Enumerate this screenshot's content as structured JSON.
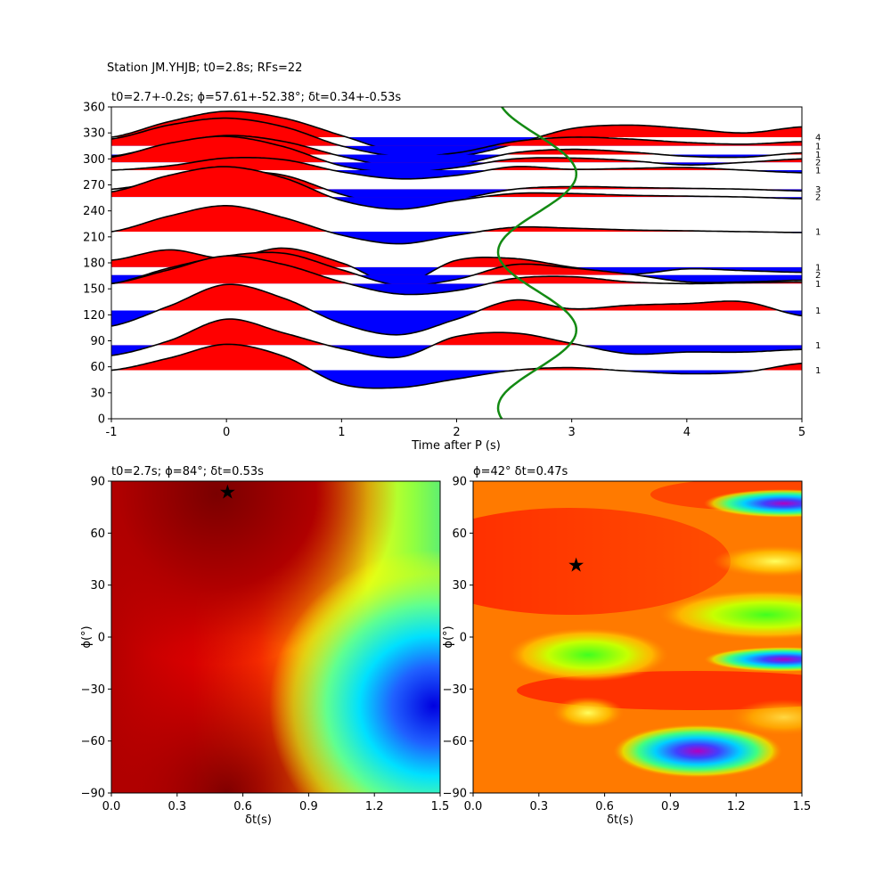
{
  "figure_title": "Station JM.YHJB; t0=2.8s; RFs=22",
  "colors": {
    "positive": "#ff0000",
    "negative": "#0000ff",
    "sine": "#138a13",
    "trace": "#000000"
  },
  "chart_data": [
    {
      "name": "receiver-function-traces",
      "type": "line",
      "title": "t0=2.7+-0.2s; ϕ=57.61+-52.38°; δt=0.34+-0.53s",
      "xlabel": "Time after P (s)",
      "ylabel": "",
      "xlim": [
        -1,
        5
      ],
      "ylim": [
        0,
        360
      ],
      "xticks": [
        -1,
        0,
        1,
        2,
        3,
        4,
        5
      ],
      "yticks": [
        0,
        30,
        60,
        90,
        120,
        150,
        180,
        210,
        240,
        270,
        300,
        330,
        360
      ],
      "time": [
        -1.0,
        -0.5,
        0.0,
        0.5,
        1.0,
        1.5,
        2.0,
        2.5,
        3.0,
        3.5,
        4.0,
        4.5,
        5.0
      ],
      "traces": [
        {
          "baseaz": 325,
          "count": "4",
          "values": [
            0,
            18,
            30,
            22,
            2,
            -18,
            -22,
            -8,
            10,
            14,
            10,
            5,
            12
          ]
        },
        {
          "baseaz": 315,
          "count": "1",
          "values": [
            8,
            24,
            32,
            22,
            0,
            -12,
            -8,
            5,
            10,
            8,
            4,
            2,
            5
          ]
        },
        {
          "baseaz": 305,
          "count": "1",
          "values": [
            -2,
            12,
            22,
            15,
            -2,
            -15,
            -12,
            2,
            6,
            3,
            -2,
            -3,
            2
          ]
        },
        {
          "baseaz": 296,
          "count": "2",
          "values": [
            6,
            22,
            30,
            18,
            -4,
            -12,
            -6,
            4,
            5,
            2,
            -3,
            0,
            4
          ]
        },
        {
          "baseaz": 287,
          "count": "1",
          "values": [
            0,
            5,
            14,
            12,
            -2,
            -10,
            -6,
            4,
            1,
            2,
            3,
            0,
            -3
          ]
        },
        {
          "baseaz": 265,
          "count": "3",
          "values": [
            0,
            10,
            20,
            16,
            -6,
            -20,
            -12,
            0,
            3,
            2,
            1,
            0,
            -2
          ]
        },
        {
          "baseaz": 256,
          "count": "2",
          "values": [
            6,
            25,
            35,
            22,
            -4,
            -14,
            -4,
            4,
            4,
            2,
            1,
            0,
            -2
          ]
        },
        {
          "baseaz": 216,
          "count": "1",
          "values": [
            0,
            18,
            30,
            16,
            -4,
            -14,
            -4,
            5,
            4,
            2,
            1,
            0,
            -1
          ]
        },
        {
          "baseaz": 175,
          "count": "1",
          "values": [
            8,
            20,
            10,
            22,
            5,
            -20,
            8,
            10,
            0,
            -8,
            -2,
            -4,
            -6
          ]
        },
        {
          "baseaz": 166,
          "count": "2",
          "values": [
            -10,
            8,
            22,
            25,
            6,
            -12,
            -5,
            12,
            8,
            1,
            -8,
            -8,
            -6
          ]
        },
        {
          "baseaz": 156,
          "count": "1",
          "values": [
            0,
            16,
            32,
            22,
            2,
            -12,
            -8,
            6,
            8,
            2,
            0,
            1,
            2
          ]
        },
        {
          "baseaz": 125,
          "count": "1",
          "values": [
            -18,
            5,
            30,
            14,
            -15,
            -28,
            -10,
            12,
            2,
            6,
            8,
            10,
            -6
          ]
        },
        {
          "baseaz": 85,
          "count": "1",
          "values": [
            -12,
            5,
            30,
            14,
            -4,
            -14,
            10,
            14,
            2,
            -10,
            -8,
            -8,
            -5
          ]
        },
        {
          "baseaz": 56,
          "count": "1",
          "values": [
            0,
            14,
            30,
            16,
            -16,
            -20,
            -10,
            0,
            3,
            -1,
            -4,
            -2,
            8
          ]
        }
      ],
      "sine_curve": {
        "center_time": 2.7,
        "amplitude": 0.34,
        "phase_deg": 57.61
      }
    },
    {
      "name": "grid-search-1",
      "type": "heatmap",
      "title": "t0=2.7s; ϕ=84°; δt=0.53s",
      "xlabel": "δt(s)",
      "ylabel": "ϕ(°)",
      "xlim": [
        0,
        1.5
      ],
      "ylim": [
        -90,
        90
      ],
      "xticks": [
        0.0,
        0.3,
        0.6,
        0.9,
        1.2,
        1.5
      ],
      "yticks": [
        -90,
        -60,
        -30,
        0,
        30,
        60,
        90
      ],
      "best": {
        "dt": 0.53,
        "phi": 84
      }
    },
    {
      "name": "grid-search-2",
      "type": "heatmap",
      "title": "ϕ=42° δt=0.47s",
      "xlabel": "δt(s)",
      "ylabel": "ϕ(°)",
      "xlim": [
        0,
        1.5
      ],
      "ylim": [
        -90,
        90
      ],
      "xticks": [
        0.0,
        0.3,
        0.6,
        0.9,
        1.2,
        1.5
      ],
      "yticks": [
        -90,
        -60,
        -30,
        0,
        30,
        60,
        90
      ],
      "best": {
        "dt": 0.47,
        "phi": 42
      }
    }
  ]
}
